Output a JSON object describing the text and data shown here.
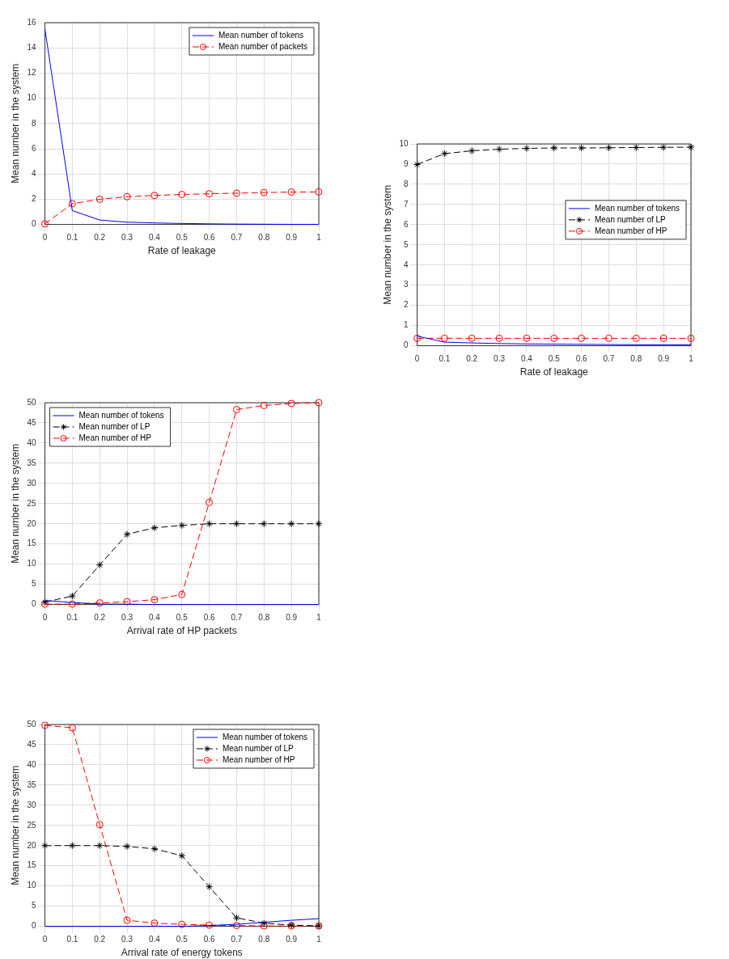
{
  "chart_data": [
    {
      "type": "line",
      "xlabel": "Rate of leakage",
      "ylabel": "Mean number in the system",
      "x": [
        0,
        0.1,
        0.2,
        0.3,
        0.4,
        0.5,
        0.6,
        0.7,
        0.8,
        0.9,
        1
      ],
      "xlim": [
        0,
        1
      ],
      "xticks": [
        0,
        0.1,
        0.2,
        0.3,
        0.4,
        0.5,
        0.6,
        0.7,
        0.8,
        0.9,
        1
      ],
      "ylim": [
        0,
        16
      ],
      "yticks": [
        0,
        2,
        4,
        6,
        8,
        10,
        12,
        14,
        16
      ],
      "grid": true,
      "legend": "top right",
      "series": [
        {
          "name": "Mean number of tokens",
          "color": "#0000ff",
          "marker": "none",
          "line_style": "solid",
          "values": [
            15.5,
            1.1,
            0.35,
            0.18,
            0.12,
            0.08,
            0.05,
            0.03,
            0.02,
            0.01,
            0.01
          ]
        },
        {
          "name": "Mean number of packets",
          "color": "#ff0000",
          "marker": "circle",
          "line_style": "dashed",
          "values": [
            0.05,
            1.65,
            2.0,
            2.2,
            2.3,
            2.38,
            2.43,
            2.48,
            2.53,
            2.57,
            2.58
          ]
        }
      ]
    },
    {
      "type": "line",
      "xlabel": "Rate of leakage",
      "ylabel": "Mean number in the system",
      "x": [
        0,
        0.1,
        0.2,
        0.3,
        0.4,
        0.5,
        0.6,
        0.7,
        0.8,
        0.9,
        1
      ],
      "xlim": [
        0,
        1
      ],
      "xticks": [
        0,
        0.1,
        0.2,
        0.3,
        0.4,
        0.5,
        0.6,
        0.7,
        0.8,
        0.9,
        1
      ],
      "ylim": [
        0,
        10
      ],
      "yticks": [
        0,
        1,
        2,
        3,
        4,
        5,
        6,
        7,
        8,
        9,
        10
      ],
      "grid": true,
      "legend": "right",
      "series": [
        {
          "name": "Mean number of tokens",
          "color": "#0000ff",
          "marker": "none",
          "line_style": "solid",
          "values": [
            0.48,
            0.18,
            0.14,
            0.11,
            0.09,
            0.08,
            0.07,
            0.06,
            0.05,
            0.05,
            0.05
          ]
        },
        {
          "name": "Mean number of LP",
          "color": "#000000",
          "marker": "cross",
          "line_style": "dashed",
          "values": [
            8.98,
            9.52,
            9.66,
            9.74,
            9.78,
            9.8,
            9.8,
            9.81,
            9.82,
            9.83,
            9.84
          ]
        },
        {
          "name": "Mean number of HP",
          "color": "#ff0000",
          "marker": "circle",
          "line_style": "dashed",
          "values": [
            0.37,
            0.37,
            0.37,
            0.37,
            0.37,
            0.37,
            0.37,
            0.37,
            0.37,
            0.37,
            0.37
          ]
        }
      ]
    },
    {
      "type": "line",
      "xlabel": "Arrival rate of HP packets",
      "ylabel": "Mean number in the system",
      "x": [
        0,
        0.1,
        0.2,
        0.3,
        0.4,
        0.5,
        0.6,
        0.7,
        0.8,
        0.9,
        1
      ],
      "xlim": [
        0,
        1
      ],
      "xticks": [
        0,
        0.1,
        0.2,
        0.3,
        0.4,
        0.5,
        0.6,
        0.7,
        0.8,
        0.9,
        1
      ],
      "ylim": [
        0,
        50
      ],
      "yticks": [
        0,
        5,
        10,
        15,
        20,
        25,
        30,
        35,
        40,
        45,
        50
      ],
      "grid": true,
      "legend": "top left",
      "series": [
        {
          "name": "Mean number of tokens",
          "color": "#0000ff",
          "marker": "none",
          "line_style": "solid",
          "values": [
            1.0,
            0.5,
            0.1,
            0.1,
            0,
            0,
            0,
            0,
            0,
            0,
            0
          ]
        },
        {
          "name": "Mean number of LP",
          "color": "#000000",
          "marker": "cross",
          "line_style": "dashed",
          "values": [
            0.6,
            2.1,
            9.8,
            17.4,
            19.0,
            19.6,
            20.0,
            20.0,
            20.0,
            20.0,
            20.0
          ]
        },
        {
          "name": "Mean number of HP",
          "color": "#ff0000",
          "marker": "circle",
          "line_style": "dashed",
          "values": [
            0.1,
            0.1,
            0.4,
            0.7,
            1.2,
            2.5,
            25.3,
            48.3,
            49.3,
            49.8,
            50.0
          ]
        }
      ]
    },
    {
      "type": "line",
      "xlabel": "Arrival rate of energy tokens",
      "ylabel": "Mean number in the system",
      "x": [
        0,
        0.1,
        0.2,
        0.3,
        0.4,
        0.5,
        0.6,
        0.7,
        0.8,
        0.9,
        1
      ],
      "xlim": [
        0,
        1
      ],
      "xticks": [
        0,
        0.1,
        0.2,
        0.3,
        0.4,
        0.5,
        0.6,
        0.7,
        0.8,
        0.9,
        1
      ],
      "ylim": [
        0,
        50
      ],
      "yticks": [
        0,
        5,
        10,
        15,
        20,
        25,
        30,
        35,
        40,
        45,
        50
      ],
      "grid": true,
      "legend": "top right",
      "series": [
        {
          "name": "Mean number of tokens",
          "color": "#0000ff",
          "marker": "none",
          "line_style": "solid",
          "values": [
            0,
            0,
            0,
            0,
            0,
            0,
            0.2,
            0.5,
            1.0,
            1.5,
            1.9
          ]
        },
        {
          "name": "Mean number of LP",
          "color": "#000000",
          "marker": "cross",
          "line_style": "dashed",
          "values": [
            20,
            20,
            20,
            19.8,
            19.2,
            17.5,
            9.8,
            2.1,
            0.8,
            0.3,
            0.1
          ]
        },
        {
          "name": "Mean number of HP",
          "color": "#ff0000",
          "marker": "circle",
          "line_style": "dashed",
          "values": [
            49.8,
            49.2,
            25.2,
            1.5,
            0.8,
            0.5,
            0.3,
            0.2,
            0.1,
            0.1,
            0.1
          ]
        }
      ]
    }
  ]
}
